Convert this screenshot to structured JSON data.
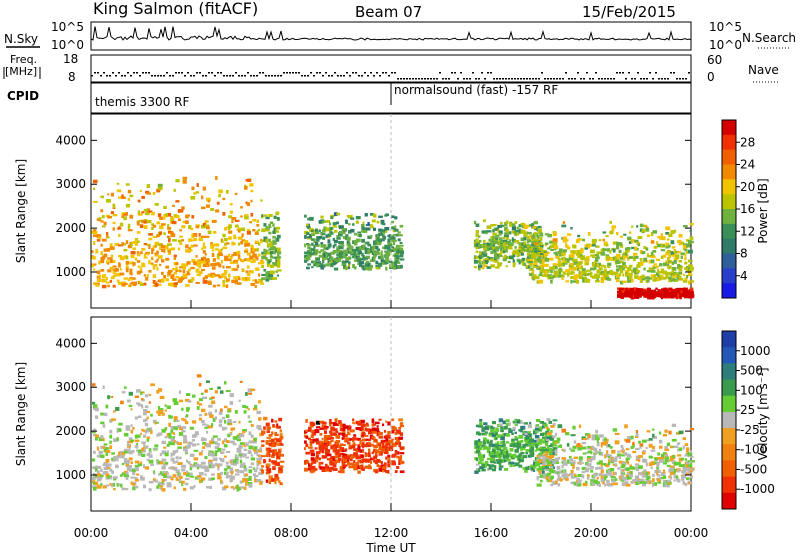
{
  "header": {
    "station": "King Salmon (fitACF)",
    "beam": "Beam 07",
    "date": "15/Feb/2015"
  },
  "strip_panels": {
    "nsky_label": "N.Sky",
    "nsearch_label": "N.Search",
    "noise_ticks": [
      "10^5",
      "10^0"
    ],
    "freq_label_1": "Freq.",
    "freq_label_2": "[MHz]",
    "freq_ticks": [
      "18",
      "8"
    ],
    "nave_label": "Nave",
    "nave_ticks": [
      "60",
      "0"
    ],
    "cpid_label": "CPID",
    "cpid_segments": [
      {
        "name": "themis 3300 RF",
        "start_hour": 0,
        "end_hour": 12
      },
      {
        "name": "normalsound (fast) -157 RF",
        "start_hour": 12,
        "end_hour": 24
      }
    ]
  },
  "colorbars": {
    "power": {
      "title": "Power [dB]",
      "ticks": [
        "28",
        "24",
        "20",
        "16",
        "12",
        "8",
        "4"
      ],
      "colors": [
        "#d40000",
        "#f03000",
        "#f06000",
        "#f28a00",
        "#f2c400",
        "#bcc400",
        "#6fb13e",
        "#3a8f58",
        "#2f7a68",
        "#2f5f9a",
        "#2a3fc9",
        "#1a1ae6"
      ]
    },
    "velocity": {
      "title": "Velocity [m s⁻¹]",
      "ticks": [
        "1000",
        "500",
        "100",
        "25",
        "-25",
        "-100",
        "-500",
        "-1000"
      ],
      "colors": [
        "#1f3ea6",
        "#2458b8",
        "#2e7d7a",
        "#3a9a4e",
        "#66cc33",
        "#b8b8b8",
        "#f0a020",
        "#f08010",
        "#f06000",
        "#f03000",
        "#e00000"
      ]
    }
  },
  "chart_data": [
    {
      "type": "heatmap",
      "panel": "power",
      "xlabel": "Time UT",
      "ylabel": "Slant Range [km]",
      "x_ticks": [
        "00:00",
        "04:00",
        "08:00",
        "12:00",
        "16:00",
        "20:00",
        "00:00"
      ],
      "xlim_hours": [
        0,
        24
      ],
      "y_ticks": [
        1000,
        2000,
        3000,
        4000
      ],
      "ylim": [
        180,
        4600
      ],
      "colorbar": "Power [dB]",
      "color_range": [
        0,
        30
      ],
      "scatter_regions": [
        {
          "t0": 0.0,
          "t1": 6.8,
          "r0": 700,
          "r1": 3500,
          "core_range": 1100,
          "value": 20
        },
        {
          "t0": 6.8,
          "t1": 7.5,
          "r0": 800,
          "r1": 2400,
          "core_range": 1600,
          "value": 14
        },
        {
          "t0": 8.5,
          "t1": 12.4,
          "r0": 1100,
          "r1": 2400,
          "core_range": 1500,
          "value": 12
        },
        {
          "t0": 15.3,
          "t1": 18.0,
          "r0": 1100,
          "r1": 2200,
          "core_range": 1600,
          "value": 14
        },
        {
          "t0": 17.5,
          "t1": 24.0,
          "r0": 800,
          "r1": 2400,
          "core_range": 1000,
          "value": 16
        },
        {
          "t0": 21.0,
          "t1": 24.0,
          "r0": 450,
          "r1": 650,
          "core_range": 550,
          "value": 30
        }
      ]
    },
    {
      "type": "heatmap",
      "panel": "velocity",
      "xlabel": "Time UT",
      "ylabel": "Slant Range [km]",
      "x_ticks": [
        "00:00",
        "04:00",
        "08:00",
        "12:00",
        "16:00",
        "20:00",
        "00:00"
      ],
      "xlim_hours": [
        0,
        24
      ],
      "y_ticks": [
        1000,
        2000,
        3000,
        4000
      ],
      "ylim": [
        180,
        4600
      ],
      "colorbar": "Velocity [m s⁻¹]",
      "color_range": [
        -1000,
        1000
      ],
      "scatter_regions": [
        {
          "t0": 0.0,
          "t1": 6.8,
          "r0": 700,
          "r1": 3500,
          "core_range": 1200,
          "value": 0
        },
        {
          "t0": 6.8,
          "t1": 7.6,
          "r0": 800,
          "r1": 2400,
          "core_range": 1500,
          "value": -600
        },
        {
          "t0": 8.5,
          "t1": 12.4,
          "r0": 1100,
          "r1": 2300,
          "core_range": 1600,
          "value": -700
        },
        {
          "t0": 15.3,
          "t1": 18.5,
          "r0": 1100,
          "r1": 2300,
          "core_range": 1600,
          "value": 300
        },
        {
          "t0": 17.8,
          "t1": 24.0,
          "r0": 800,
          "r1": 2400,
          "core_range": 1000,
          "value": 0
        }
      ]
    }
  ]
}
